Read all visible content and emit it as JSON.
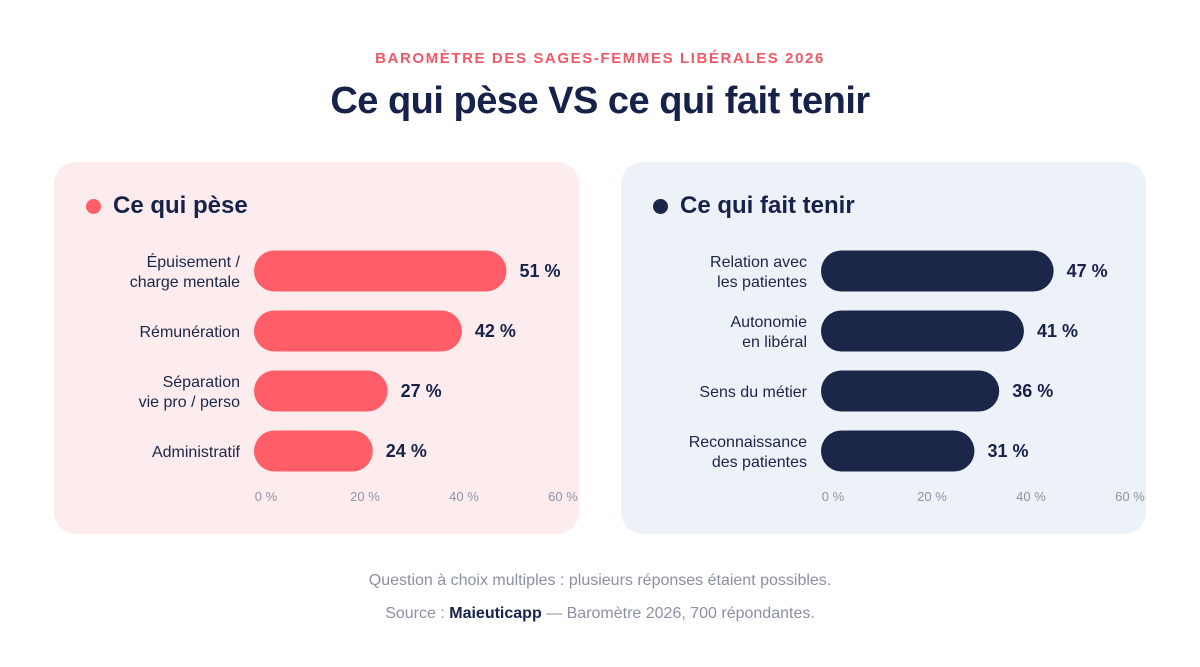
{
  "kicker": "BAROMÈTRE DES SAGES-FEMMES LIBÉRALES 2026",
  "title": "Ce qui pèse VS ce qui fait tenir",
  "colors": {
    "left_accent": "#ff5e69",
    "right_accent": "#1b2649"
  },
  "footnote": "Question à choix multiples : plusieurs réponses étaient possibles.",
  "source": {
    "prefix": "Source :",
    "brand": "Maieuticapp",
    "suffix": "— Baromètre 2026, 700 répondantes."
  },
  "chart_data": [
    {
      "type": "bar",
      "orientation": "horizontal",
      "title": "Ce qui pèse",
      "color": "#ff5e69",
      "categories": [
        [
          "Épuisement /",
          "charge mentale"
        ],
        [
          "Rémunération"
        ],
        [
          "Séparation",
          "vie pro / perso"
        ],
        [
          "Administratif"
        ]
      ],
      "values": [
        51,
        42,
        27,
        24
      ],
      "value_labels": [
        "51 %",
        "42 %",
        "27 %",
        "24 %"
      ],
      "xticks": [
        "0 %",
        "20 %",
        "40 %",
        "60 %"
      ],
      "xlim": [
        0,
        60
      ]
    },
    {
      "type": "bar",
      "orientation": "horizontal",
      "title": "Ce qui fait tenir",
      "color": "#1b2649",
      "categories": [
        [
          "Relation avec",
          "les patientes"
        ],
        [
          "Autonomie",
          "en libéral"
        ],
        [
          "Sens du métier"
        ],
        [
          "Reconnaissance",
          "des patientes"
        ]
      ],
      "values": [
        47,
        41,
        36,
        31
      ],
      "value_labels": [
        "47 %",
        "41 %",
        "36 %",
        "31 %"
      ],
      "xticks": [
        "0 %",
        "20 %",
        "40 %",
        "60 %"
      ],
      "xlim": [
        0,
        60
      ]
    }
  ]
}
